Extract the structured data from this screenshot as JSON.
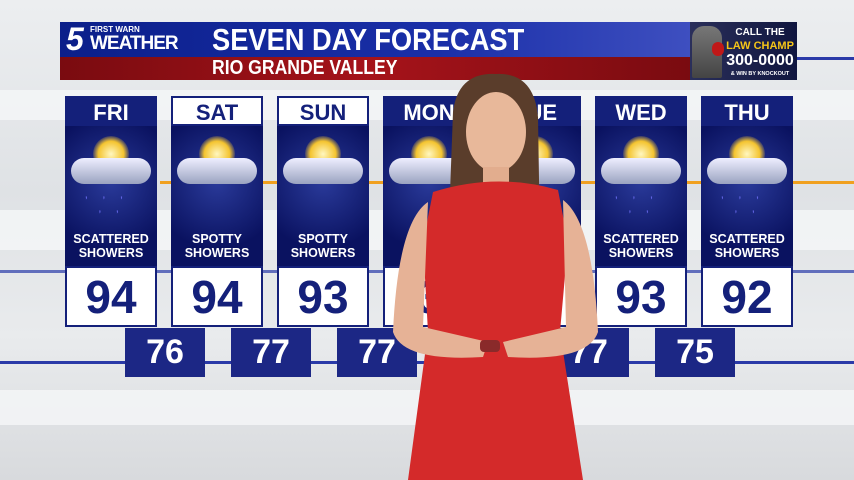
{
  "header": {
    "logo_number": "5",
    "logo_tag": "FIRST WARN",
    "logo_word": "WEATHER",
    "title": "SEVEN DAY FORECAST",
    "subtitle": "RIO GRANDE VALLEY"
  },
  "ad": {
    "line1": "CALL THE",
    "line2": "LAW CHAMP",
    "line3": "300-0000",
    "line4": "& WIN BY KNOCKOUT"
  },
  "colors": {
    "navy": "#14207a",
    "banner_blue": "#1a2fa8",
    "banner_red": "#a5131a",
    "accent_orange": "#f0a020",
    "dress_red": "#d42a2a"
  },
  "days": [
    {
      "day": "FRI",
      "condition_line1": "SCATTERED",
      "condition_line2": "SHOWERS",
      "high": "94",
      "icon": "sun-cloud-rain-icon"
    },
    {
      "day": "SAT",
      "condition_line1": "SPOTTY",
      "condition_line2": "SHOWERS",
      "high": "94",
      "icon": "sun-cloud-icon"
    },
    {
      "day": "SUN",
      "condition_line1": "SPOTTY",
      "condition_line2": "SHOWERS",
      "high": "93",
      "icon": "sun-cloud-icon"
    },
    {
      "day": "MON",
      "condition_line1": "",
      "condition_line2": "",
      "high": "3",
      "icon": "sun-cloud-icon"
    },
    {
      "day": "TUE",
      "condition_line1": "",
      "condition_line2": "",
      "high": "2",
      "icon": "sun-cloud-icon"
    },
    {
      "day": "WED",
      "condition_line1": "SCATTERED",
      "condition_line2": "SHOWERS",
      "high": "93",
      "icon": "sun-cloud-rain-icon"
    },
    {
      "day": "THU",
      "condition_line1": "SCATTERED",
      "condition_line2": "SHOWERS",
      "high": "92",
      "icon": "sun-cloud-rain-icon"
    }
  ],
  "lows": [
    "76",
    "77",
    "77",
    "",
    "77",
    "75"
  ]
}
